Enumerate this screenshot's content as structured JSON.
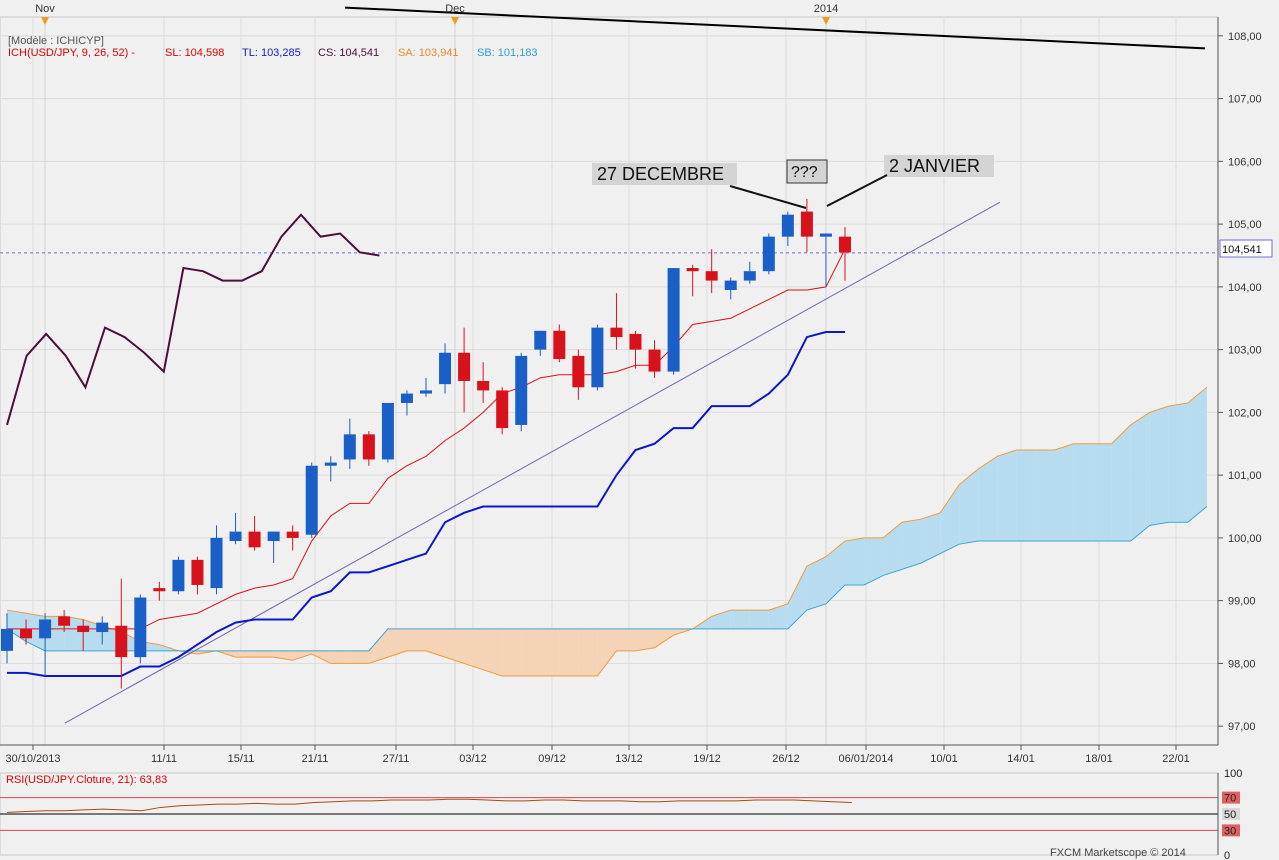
{
  "top_markers": [
    {
      "label": "Nov",
      "x_date": "2013-11-01"
    },
    {
      "label": "Dec",
      "x_date": "2013-12-02"
    },
    {
      "label": "2014",
      "x_date": "2014-01-02"
    }
  ],
  "legend": {
    "model": "[Modèle : ICHICYP]",
    "ich": "ICH(USD/JPY, 9, 26, 52) -",
    "sl": "SL: 104,598",
    "tl": "TL: 103,285",
    "cs": "CS: 104,541",
    "sa": "SA: 103,941",
    "sb": "SB: 101,183"
  },
  "annotations": {
    "dec27": "27 DECEMBRE",
    "question": "???",
    "jan2": "2 JANVIER"
  },
  "price_label": "104,541",
  "rsi_label": "RSI(USD/JPY.Cloture, 21): 63,83",
  "copyright": "FXCM Marketscope © 2014",
  "colors": {
    "bull": "#1a5fc8",
    "bear": "#d8121b",
    "tenkan": "#dd1111",
    "kijun": "#0a18c8",
    "chikou": "#4a0f3c",
    "senkou_a": "#f29a3a",
    "senkou_b": "#38a8d8",
    "cloud_bull": "#b8dcef",
    "cloud_bear": "#f4d3b7",
    "rsi": "#a24c16"
  },
  "chart_data": {
    "type": "candlestick",
    "title": "",
    "xlabel": "",
    "ylabel": "",
    "ylim": [
      96.7,
      108.3
    ],
    "y_ticks": [
      "97,00",
      "98,00",
      "99,00",
      "100,00",
      "101,00",
      "102,00",
      "103,00",
      "104,00",
      "105,00",
      "106,00",
      "107,00",
      "108,00"
    ],
    "x_ticks": [
      "30/10/2013",
      "11/11",
      "15/11",
      "21/11",
      "27/11",
      "03/12",
      "09/12",
      "13/12",
      "19/12",
      "26/12",
      "06/01/2014",
      "10/01",
      "14/01",
      "18/01",
      "22/01"
    ],
    "candles": [
      {
        "date": "2013-10-30",
        "o": 98.2,
        "h": 98.8,
        "l": 98.0,
        "c": 98.55
      },
      {
        "date": "2013-10-31",
        "o": 98.55,
        "h": 98.7,
        "l": 98.3,
        "c": 98.4
      },
      {
        "date": "2013-11-01",
        "o": 98.4,
        "h": 98.8,
        "l": 97.8,
        "c": 98.7
      },
      {
        "date": "2013-11-04",
        "o": 98.75,
        "h": 98.85,
        "l": 98.5,
        "c": 98.6
      },
      {
        "date": "2013-11-05",
        "o": 98.6,
        "h": 98.7,
        "l": 98.2,
        "c": 98.5
      },
      {
        "date": "2013-11-06",
        "o": 98.5,
        "h": 98.75,
        "l": 98.3,
        "c": 98.65
      },
      {
        "date": "2013-11-07",
        "o": 98.6,
        "h": 99.35,
        "l": 97.6,
        "c": 98.1
      },
      {
        "date": "2013-11-08",
        "o": 98.1,
        "h": 99.1,
        "l": 98.0,
        "c": 99.05
      },
      {
        "date": "2013-11-11",
        "o": 99.2,
        "h": 99.3,
        "l": 99.0,
        "c": 99.15
      },
      {
        "date": "2013-11-12",
        "o": 99.15,
        "h": 99.7,
        "l": 99.1,
        "c": 99.65
      },
      {
        "date": "2013-11-13",
        "o": 99.65,
        "h": 99.7,
        "l": 99.1,
        "c": 99.25
      },
      {
        "date": "2013-11-14",
        "o": 99.2,
        "h": 100.2,
        "l": 99.1,
        "c": 100.0
      },
      {
        "date": "2013-11-15",
        "o": 99.95,
        "h": 100.4,
        "l": 99.9,
        "c": 100.1
      },
      {
        "date": "2013-11-18",
        "o": 100.1,
        "h": 100.35,
        "l": 99.8,
        "c": 99.85
      },
      {
        "date": "2013-11-19",
        "o": 99.95,
        "h": 100.1,
        "l": 99.6,
        "c": 100.1
      },
      {
        "date": "2013-11-20",
        "o": 100.1,
        "h": 100.2,
        "l": 99.8,
        "c": 100.0
      },
      {
        "date": "2013-11-21",
        "o": 100.05,
        "h": 101.2,
        "l": 100.0,
        "c": 101.15
      },
      {
        "date": "2013-11-22",
        "o": 101.15,
        "h": 101.3,
        "l": 100.9,
        "c": 101.2
      },
      {
        "date": "2013-11-25",
        "o": 101.25,
        "h": 101.9,
        "l": 101.1,
        "c": 101.65
      },
      {
        "date": "2013-11-26",
        "o": 101.65,
        "h": 101.7,
        "l": 101.15,
        "c": 101.25
      },
      {
        "date": "2013-11-27",
        "o": 101.25,
        "h": 102.15,
        "l": 101.2,
        "c": 102.15
      },
      {
        "date": "2013-11-28",
        "o": 102.15,
        "h": 102.35,
        "l": 101.95,
        "c": 102.3
      },
      {
        "date": "2013-11-29",
        "o": 102.3,
        "h": 102.55,
        "l": 102.25,
        "c": 102.35
      },
      {
        "date": "2013-12-02",
        "o": 102.45,
        "h": 103.1,
        "l": 102.3,
        "c": 102.95
      },
      {
        "date": "2013-12-03",
        "o": 102.95,
        "h": 103.35,
        "l": 102.0,
        "c": 102.5
      },
      {
        "date": "2013-12-04",
        "o": 102.5,
        "h": 102.8,
        "l": 102.15,
        "c": 102.35
      },
      {
        "date": "2013-12-05",
        "o": 102.35,
        "h": 102.4,
        "l": 101.65,
        "c": 101.75
      },
      {
        "date": "2013-12-06",
        "o": 101.8,
        "h": 102.95,
        "l": 101.7,
        "c": 102.9
      },
      {
        "date": "2013-12-09",
        "o": 103.0,
        "h": 103.3,
        "l": 102.9,
        "c": 103.3
      },
      {
        "date": "2013-12-10",
        "o": 103.3,
        "h": 103.4,
        "l": 102.8,
        "c": 102.85
      },
      {
        "date": "2013-12-11",
        "o": 102.9,
        "h": 103.0,
        "l": 102.2,
        "c": 102.4
      },
      {
        "date": "2013-12-12",
        "o": 102.4,
        "h": 103.4,
        "l": 102.35,
        "c": 103.35
      },
      {
        "date": "2013-12-13",
        "o": 103.35,
        "h": 103.9,
        "l": 103.0,
        "c": 103.2
      },
      {
        "date": "2013-12-16",
        "o": 103.25,
        "h": 103.3,
        "l": 102.7,
        "c": 103.0
      },
      {
        "date": "2013-12-17",
        "o": 103.0,
        "h": 103.15,
        "l": 102.55,
        "c": 102.65
      },
      {
        "date": "2013-12-18",
        "o": 102.65,
        "h": 104.3,
        "l": 102.6,
        "c": 104.3
      },
      {
        "date": "2013-12-19",
        "o": 104.3,
        "h": 104.35,
        "l": 103.85,
        "c": 104.25
      },
      {
        "date": "2013-12-20",
        "o": 104.25,
        "h": 104.6,
        "l": 103.9,
        "c": 104.1
      },
      {
        "date": "2013-12-23",
        "o": 103.95,
        "h": 104.15,
        "l": 103.8,
        "c": 104.1
      },
      {
        "date": "2013-12-24",
        "o": 104.1,
        "h": 104.4,
        "l": 104.05,
        "c": 104.25
      },
      {
        "date": "2013-12-26",
        "o": 104.25,
        "h": 104.85,
        "l": 104.2,
        "c": 104.8
      },
      {
        "date": "2013-12-27",
        "o": 104.8,
        "h": 105.2,
        "l": 104.65,
        "c": 105.15
      },
      {
        "date": "2013-12-30",
        "o": 105.2,
        "h": 105.4,
        "l": 104.55,
        "c": 104.8
      },
      {
        "date": "2014-01-02",
        "o": 104.8,
        "h": 104.85,
        "l": 104.0,
        "c": 104.85
      },
      {
        "date": "2014-01-03",
        "o": 104.8,
        "h": 104.95,
        "l": 104.1,
        "c": 104.55
      }
    ],
    "tenkan": [
      98.55,
      98.55,
      98.55,
      98.55,
      98.55,
      98.55,
      98.55,
      98.55,
      98.7,
      98.75,
      98.8,
      98.95,
      99.1,
      99.2,
      99.25,
      99.35,
      99.95,
      100.35,
      100.55,
      100.55,
      100.95,
      101.15,
      101.3,
      101.55,
      101.75,
      102.0,
      102.3,
      102.4,
      102.55,
      102.6,
      102.6,
      102.6,
      102.65,
      102.75,
      102.75,
      103.05,
      103.4,
      103.45,
      103.5,
      103.65,
      103.8,
      103.95,
      103.95,
      104.0,
      104.6
    ],
    "kijun": [
      97.85,
      97.85,
      97.8,
      97.8,
      97.8,
      97.8,
      97.8,
      97.95,
      97.95,
      98.1,
      98.3,
      98.5,
      98.65,
      98.7,
      98.7,
      98.7,
      99.05,
      99.15,
      99.45,
      99.45,
      99.55,
      99.65,
      99.75,
      100.25,
      100.4,
      100.5,
      100.5,
      100.5,
      100.5,
      100.5,
      100.5,
      100.5,
      101.0,
      101.4,
      101.5,
      101.75,
      101.75,
      102.1,
      102.1,
      102.1,
      102.3,
      102.6,
      103.2,
      103.28,
      103.28
    ],
    "chikou_x": [
      "2013-10-29",
      "2013-10-30",
      "2013-10-31",
      "2013-11-01",
      "2013-11-04",
      "2013-11-05",
      "2013-11-06",
      "2013-11-07",
      "2013-11-08",
      "2013-11-11",
      "2013-11-12",
      "2013-11-13",
      "2013-11-14",
      "2013-11-15",
      "2013-11-18",
      "2013-11-19",
      "2013-11-20",
      "2013-11-21",
      "2013-11-22",
      "2013-11-25"
    ],
    "chikou": [
      101.8,
      102.9,
      103.25,
      102.9,
      102.4,
      103.35,
      103.2,
      102.95,
      102.65,
      104.3,
      104.25,
      104.1,
      104.1,
      104.25,
      104.8,
      105.15,
      104.8,
      104.85,
      104.55,
      104.5
    ],
    "senkou_a": [
      98.85,
      98.8,
      98.75,
      98.75,
      98.7,
      98.6,
      98.5,
      98.35,
      98.3,
      98.2,
      98.15,
      98.2,
      98.1,
      98.1,
      98.1,
      98.05,
      98.15,
      98.0,
      98.0,
      98.0,
      98.1,
      98.2,
      98.2,
      98.1,
      98.0,
      97.9,
      97.8,
      97.8,
      97.8,
      97.8,
      97.8,
      97.8,
      98.2,
      98.2,
      98.25,
      98.45,
      98.55,
      98.75,
      98.85,
      98.85,
      98.85,
      98.95,
      99.55,
      99.7,
      99.95,
      100.0,
      100.0,
      100.25,
      100.3,
      100.4,
      100.85,
      101.1,
      101.3,
      101.4,
      101.4,
      101.4,
      101.5,
      101.5,
      101.5,
      101.8,
      102.0,
      102.1,
      102.15,
      102.4
    ],
    "senkou_b": [
      98.55,
      98.35,
      98.2,
      98.2,
      98.2,
      98.2,
      98.2,
      98.2,
      98.2,
      98.2,
      98.2,
      98.2,
      98.2,
      98.2,
      98.2,
      98.2,
      98.2,
      98.2,
      98.2,
      98.2,
      98.55,
      98.55,
      98.55,
      98.55,
      98.55,
      98.55,
      98.55,
      98.55,
      98.55,
      98.55,
      98.55,
      98.55,
      98.55,
      98.55,
      98.55,
      98.55,
      98.55,
      98.55,
      98.55,
      98.55,
      98.55,
      98.55,
      98.85,
      98.95,
      99.25,
      99.25,
      99.4,
      99.5,
      99.6,
      99.75,
      99.9,
      99.95,
      99.95,
      99.95,
      99.95,
      99.95,
      99.95,
      99.95,
      99.95,
      99.95,
      100.2,
      100.25,
      100.25,
      100.5
    ],
    "senkou_x_start": "2013-10-30",
    "horizontal_line": 108.1,
    "trendline": [
      {
        "date": "2013-11-01",
        "y": 97.05
      },
      {
        "date": "2014-01-10",
        "y": 105.3
      }
    ],
    "rsi": {
      "level": 63.83,
      "lines": [
        70,
        50,
        30
      ],
      "range": [
        0,
        100
      ],
      "ticks": [
        "100",
        "70",
        "50",
        "30",
        "0"
      ]
    }
  }
}
